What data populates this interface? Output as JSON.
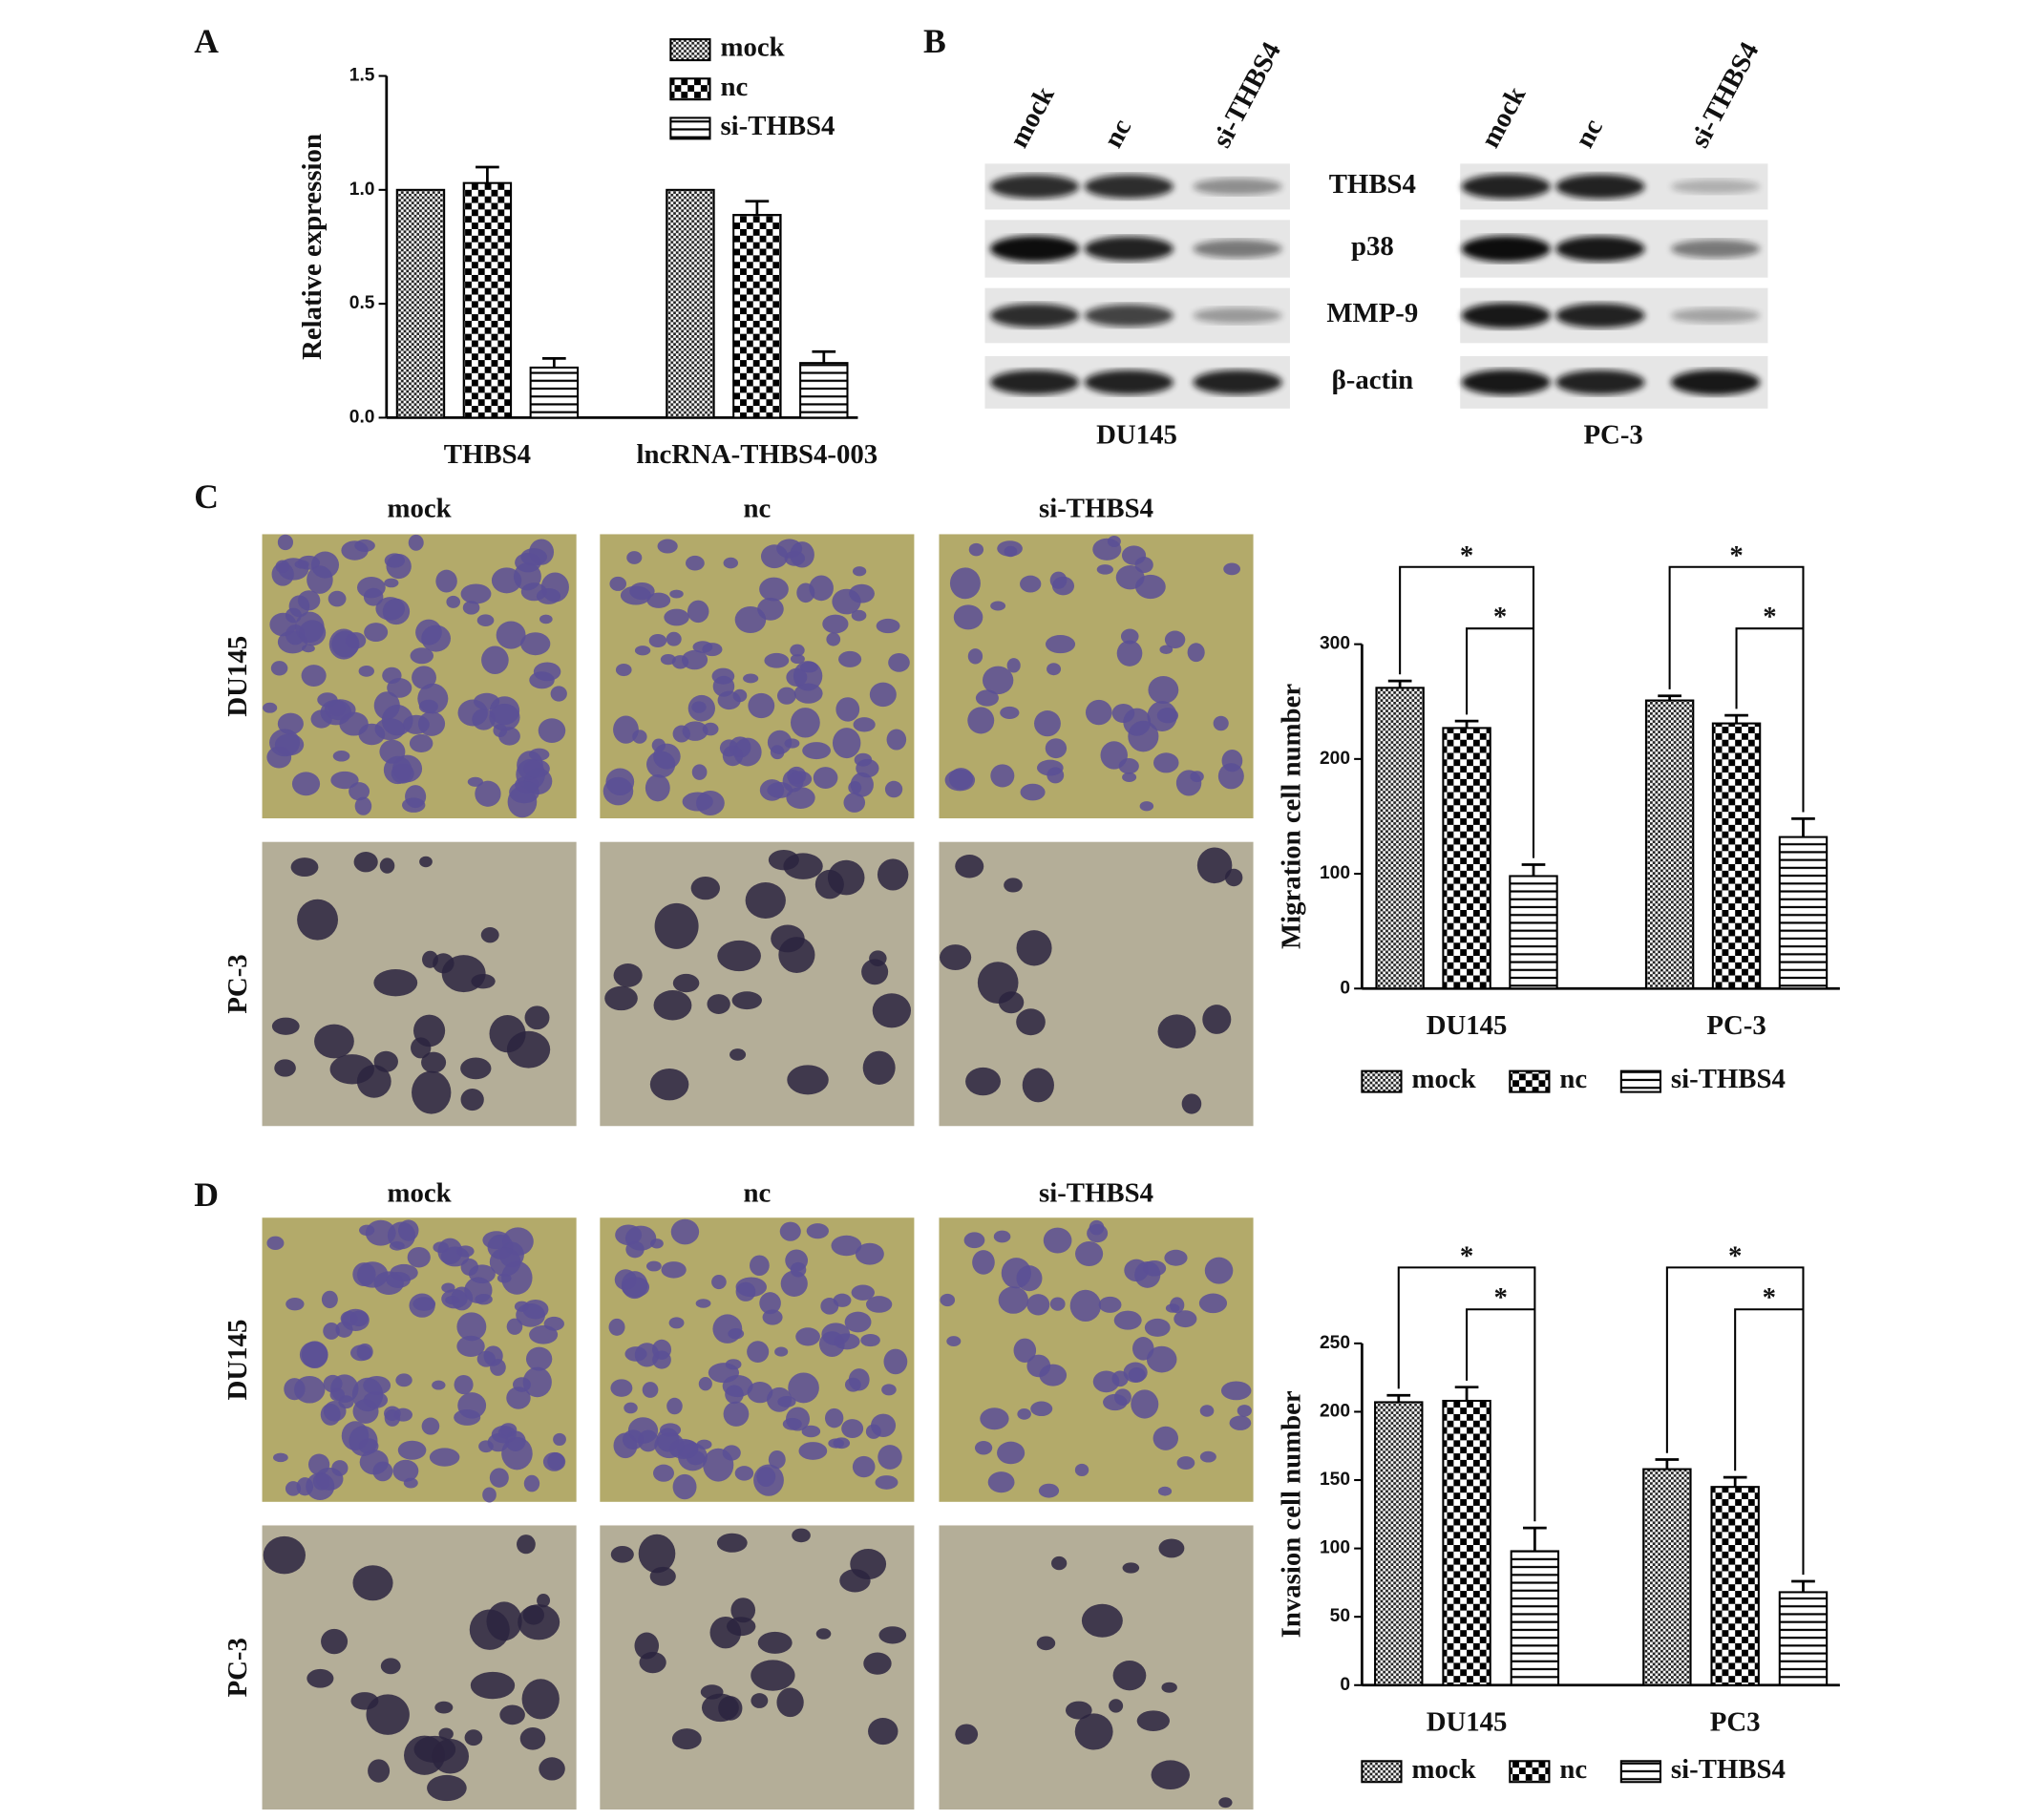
{
  "panel_labels": [
    "A",
    "B",
    "C",
    "D"
  ],
  "chart_data": [
    {
      "type": "bar",
      "ylabel": "Relative expression",
      "categories": [
        "THBS4",
        "lncRNA-THBS4-003"
      ],
      "series": [
        {
          "name": "mock",
          "color": "#000000",
          "values": [
            1.0,
            1.0
          ]
        },
        {
          "name": "nc",
          "color": "#000000",
          "values": [
            1.03,
            0.89
          ],
          "errors": [
            0.07,
            0.06
          ]
        },
        {
          "name": "si-THBS4",
          "color": "#000000",
          "values": [
            0.22,
            0.24
          ],
          "errors": [
            0.04,
            0.05
          ]
        }
      ],
      "ylim": [
        0,
        1.5
      ],
      "yticks": [
        {
          "value": 0,
          "label": "0.0"
        },
        0.5,
        {
          "value": 1,
          "label": "1.0"
        },
        {
          "value": 1.5,
          "label": "1.5"
        }
      ],
      "legend": "top-right"
    },
    {
      "type": "bar",
      "ylabel": "Migration cell number",
      "categories": [
        "DU145",
        "PC-3"
      ],
      "series": [
        {
          "name": "mock",
          "color": "#000000",
          "values": [
            262,
            251
          ],
          "errors": [
            6,
            4
          ]
        },
        {
          "name": "nc",
          "color": "#000000",
          "values": [
            227,
            231
          ],
          "errors": [
            6,
            7
          ]
        },
        {
          "name": "si-THBS4",
          "color": "#000000",
          "values": [
            98,
            132
          ],
          "errors": [
            10,
            16
          ]
        }
      ],
      "ylim": [
        0,
        300
      ],
      "yticks": [
        0,
        100,
        200,
        300
      ],
      "legend": "bottom",
      "annotations": [
        "*",
        "*",
        "*",
        "*"
      ]
    },
    {
      "type": "bar",
      "ylabel": "Invasion cell number",
      "categories": [
        "DU145",
        "PC3"
      ],
      "series": [
        {
          "name": "mock",
          "color": "#000000",
          "values": [
            207,
            158
          ],
          "errors": [
            5,
            7
          ]
        },
        {
          "name": "nc",
          "color": "#000000",
          "values": [
            208,
            145
          ],
          "errors": [
            10,
            7
          ]
        },
        {
          "name": "si-THBS4",
          "color": "#000000",
          "values": [
            98,
            68
          ],
          "errors": [
            17,
            8
          ]
        }
      ],
      "ylim": [
        0,
        250
      ],
      "yticks": [
        0,
        50,
        100,
        150,
        200,
        250
      ],
      "legend": "bottom",
      "annotations": [
        "*",
        "*",
        "*",
        "*"
      ]
    }
  ],
  "western_blot": {
    "lanes": [
      "mock",
      "nc",
      "si-THBS4"
    ],
    "proteins": [
      "THBS4",
      "p38",
      "MMP-9",
      "β-actin"
    ],
    "cell_lines": [
      "DU145",
      "PC-3"
    ]
  },
  "micrographs": {
    "columns": [
      "mock",
      "nc",
      "si-THBS4"
    ],
    "rows": [
      "DU145",
      "PC-3"
    ]
  }
}
